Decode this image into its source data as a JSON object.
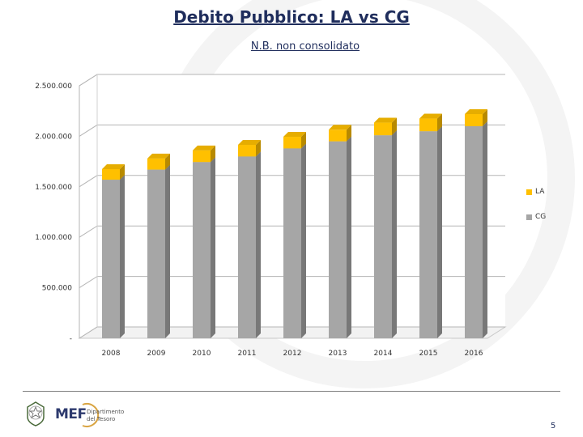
{
  "header": {
    "title": "Debito Pubblico: LA vs CG",
    "subtitle": "N.B. non consolidato"
  },
  "chart_data": {
    "type": "bar",
    "stacked": true,
    "categories": [
      "2008",
      "2009",
      "2010",
      "2011",
      "2012",
      "2013",
      "2014",
      "2015",
      "2016"
    ],
    "series": [
      {
        "name": "CG",
        "color": "#a6a6a6",
        "values": [
          1570000,
          1670000,
          1745000,
          1800000,
          1880000,
          1950000,
          2010000,
          2050000,
          2100000
        ]
      },
      {
        "name": "LA",
        "color": "#ffc000",
        "values": [
          105000,
          110000,
          115000,
          115000,
          115000,
          115000,
          125000,
          125000,
          120000
        ]
      }
    ],
    "y_ticks": [
      "-",
      "500.000",
      "1.000.000",
      "1.500.000",
      "2.000.000",
      "2.500.000"
    ],
    "ylim": [
      0,
      2500000
    ],
    "legend_position": "right",
    "grid": true
  },
  "legend": {
    "la_label": "LA",
    "cg_label": "CG"
  },
  "footer": {
    "logo_text": "MEF",
    "dept_line1": "Dipartimento",
    "dept_line2": "del Tesoro",
    "page_number": "5"
  }
}
